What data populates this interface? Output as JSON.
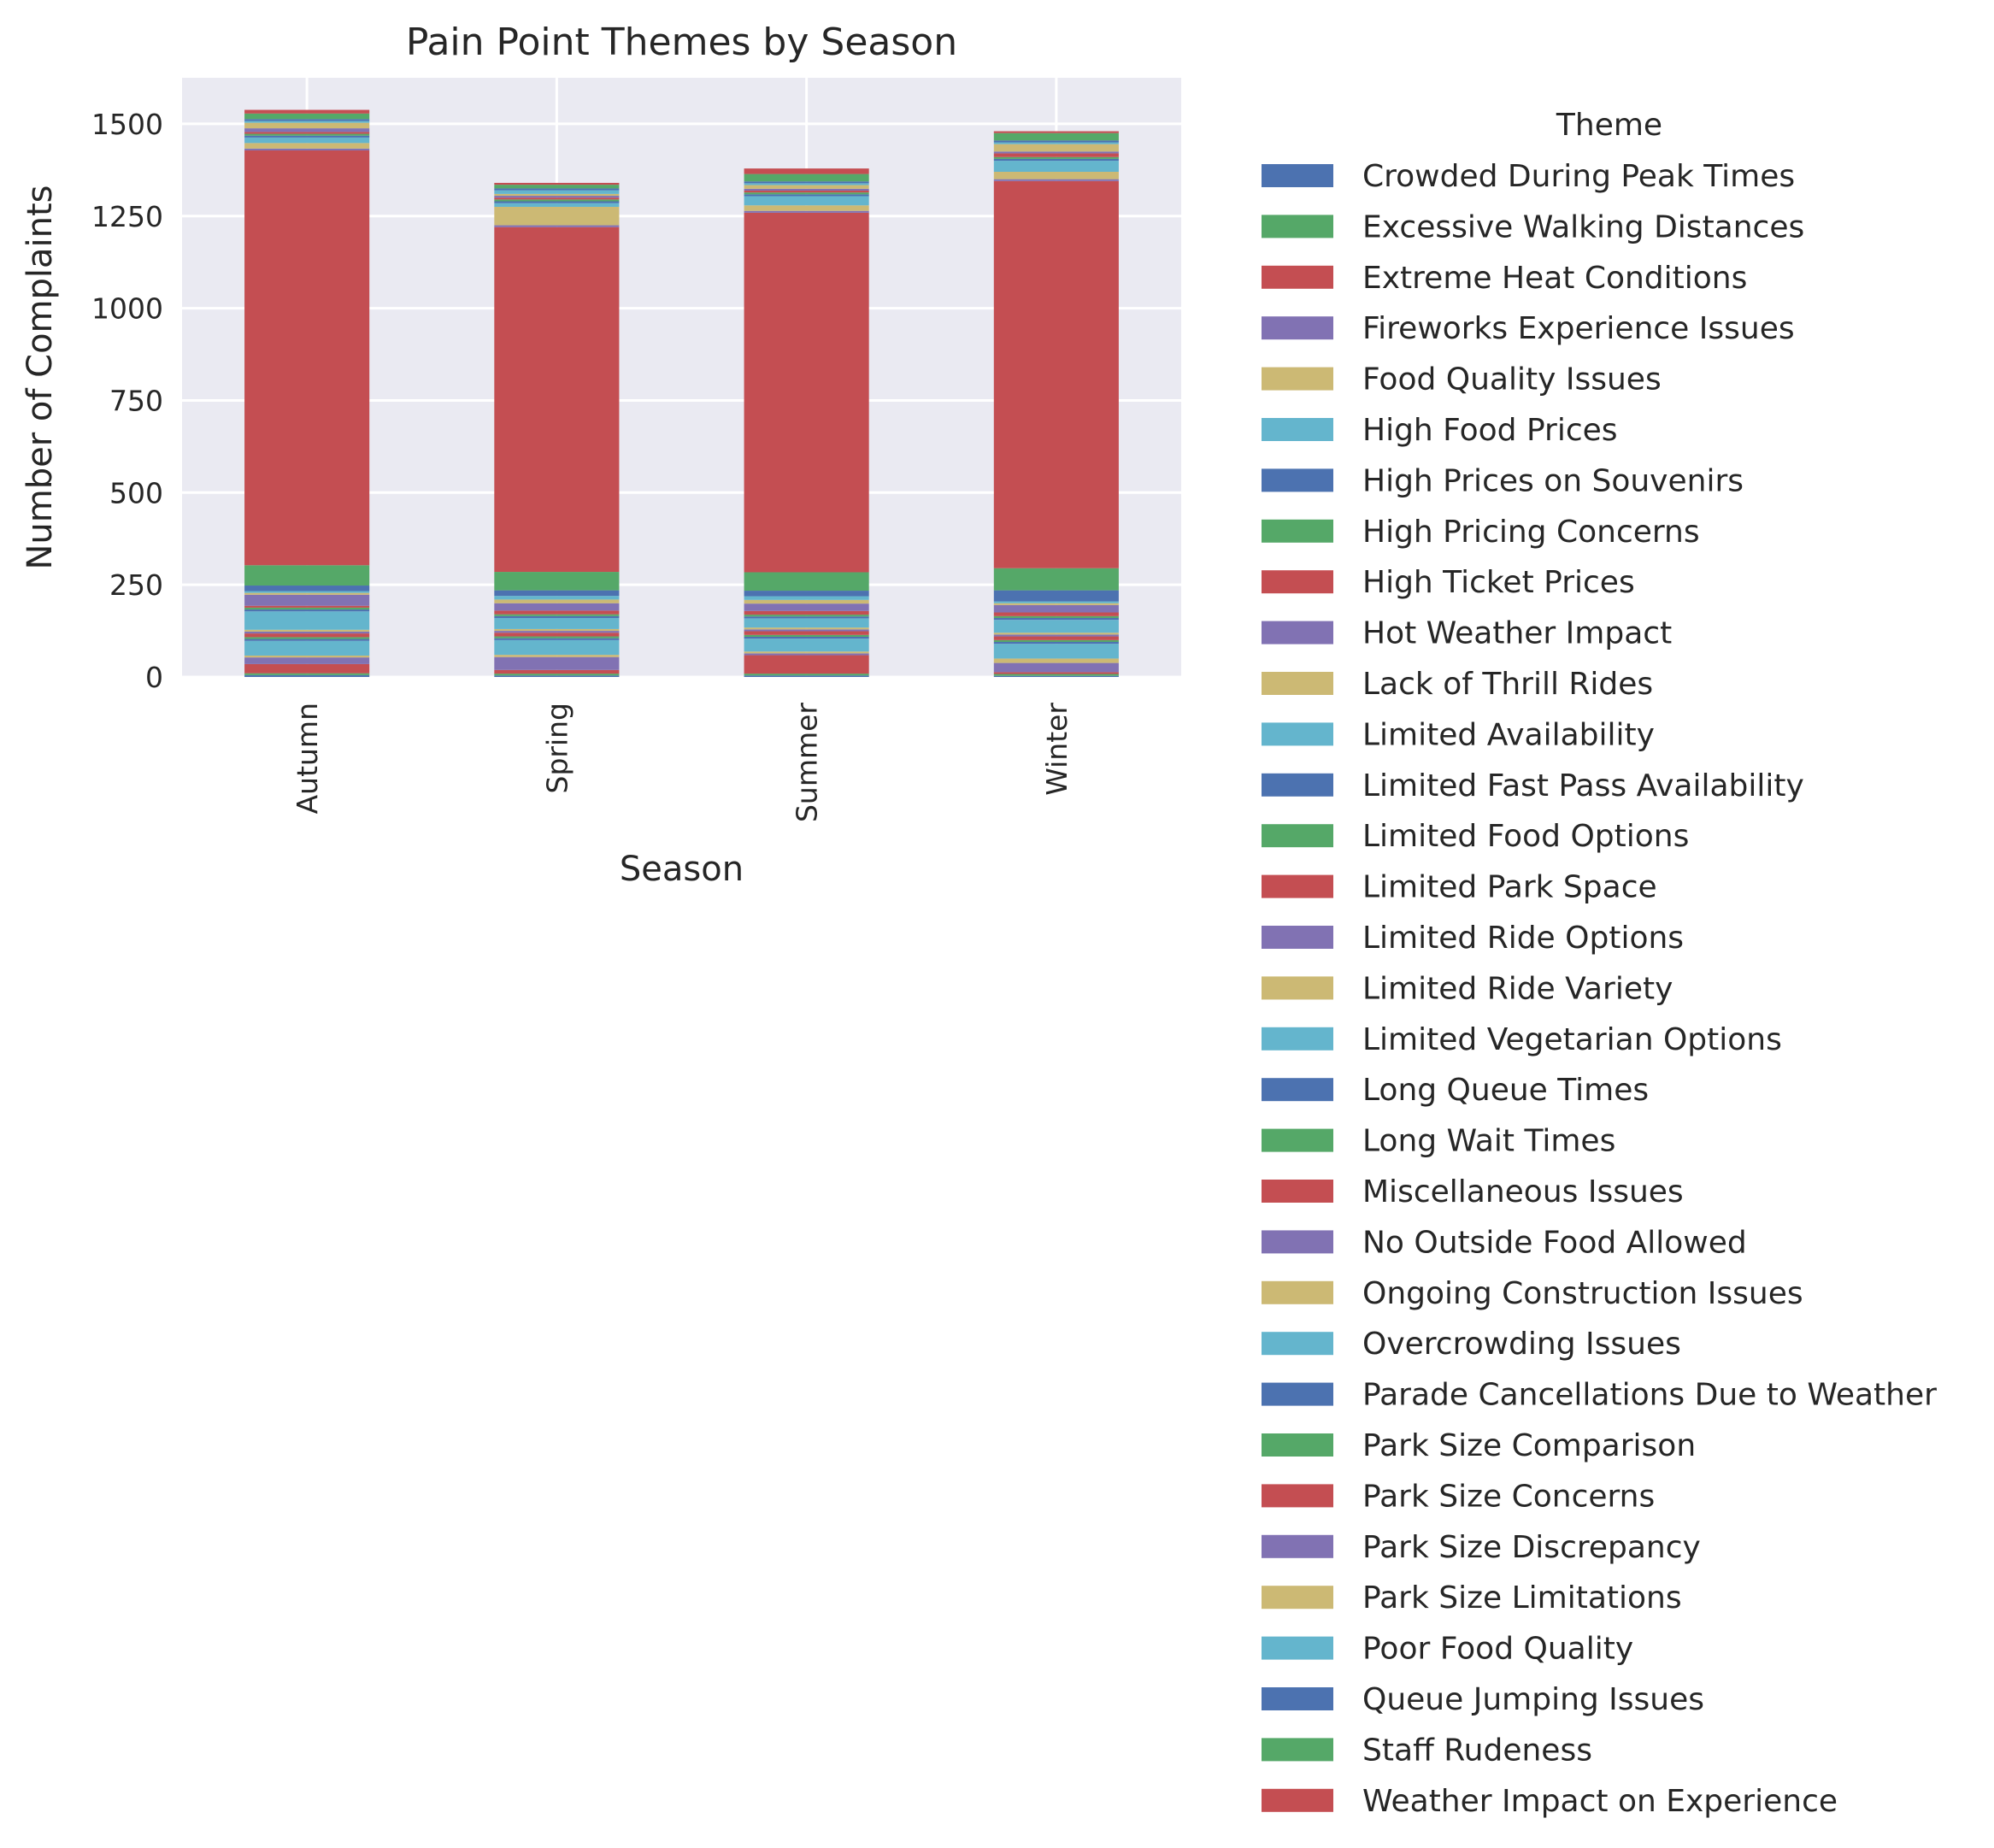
{
  "chart_data": {
    "type": "bar",
    "stacked": true,
    "title": "Pain Point Themes by Season",
    "xlabel": "Season",
    "ylabel": "Number of Complaints",
    "ylim": [
      0,
      1625
    ],
    "yticks": [
      0,
      250,
      500,
      750,
      1000,
      1250,
      1500
    ],
    "grid": true,
    "legend_position": "outside right",
    "legend_title": "Theme",
    "categories": [
      "Autumn",
      "Spring",
      "Summer",
      "Winter"
    ],
    "series": [
      {
        "name": "Crowded During Peak Times",
        "color": "#4c72b0",
        "values": [
          5,
          4,
          4,
          3
        ]
      },
      {
        "name": "Excessive Walking Distances",
        "color": "#55a868",
        "values": [
          5,
          5,
          5,
          5
        ]
      },
      {
        "name": "Extreme Heat Conditions",
        "color": "#c44e52",
        "values": [
          25,
          10,
          50,
          5
        ]
      },
      {
        "name": "Fireworks Experience Issues",
        "color": "#8172b3",
        "values": [
          18,
          35,
          5,
          25
        ]
      },
      {
        "name": "Food Quality Issues",
        "color": "#ccb974",
        "values": [
          5,
          6,
          5,
          12
        ]
      },
      {
        "name": "High Food Prices",
        "color": "#64b5cd",
        "values": [
          40,
          40,
          35,
          40
        ]
      },
      {
        "name": "High Prices on Souvenirs",
        "color": "#4c72b0",
        "values": [
          5,
          5,
          5,
          5
        ]
      },
      {
        "name": "High Pricing Concerns",
        "color": "#55a868",
        "values": [
          5,
          5,
          5,
          5
        ]
      },
      {
        "name": "High Ticket Prices",
        "color": "#c44e52",
        "values": [
          10,
          10,
          10,
          10
        ]
      },
      {
        "name": "Hot Weather Impact",
        "color": "#8172b3",
        "values": [
          5,
          5,
          5,
          5
        ]
      },
      {
        "name": "Lack of Thrill Rides",
        "color": "#ccb974",
        "values": [
          5,
          5,
          5,
          5
        ]
      },
      {
        "name": "Limited Availability",
        "color": "#64b5cd",
        "values": [
          50,
          30,
          25,
          35
        ]
      },
      {
        "name": "Limited Fast Pass Availability",
        "color": "#4c72b0",
        "values": [
          5,
          5,
          5,
          5
        ]
      },
      {
        "name": "Limited Food Options",
        "color": "#55a868",
        "values": [
          5,
          5,
          5,
          5
        ]
      },
      {
        "name": "Limited Park Space",
        "color": "#c44e52",
        "values": [
          5,
          10,
          10,
          10
        ]
      },
      {
        "name": "Limited Ride Options",
        "color": "#8172b3",
        "values": [
          30,
          20,
          20,
          20
        ]
      },
      {
        "name": "Limited Ride Variety",
        "color": "#ccb974",
        "values": [
          5,
          10,
          10,
          5
        ]
      },
      {
        "name": "Limited Vegetarian Options",
        "color": "#64b5cd",
        "values": [
          5,
          10,
          10,
          5
        ]
      },
      {
        "name": "Long Queue Times",
        "color": "#4c72b0",
        "values": [
          15,
          15,
          15,
          30
        ]
      },
      {
        "name": "Long Wait Times",
        "color": "#55a868",
        "values": [
          55,
          50,
          50,
          60
        ]
      },
      {
        "name": "Miscellaneous Issues",
        "color": "#c44e52",
        "values": [
          1125,
          935,
          975,
          1050
        ]
      },
      {
        "name": "No Outside Food Allowed",
        "color": "#8172b3",
        "values": [
          5,
          5,
          5,
          5
        ]
      },
      {
        "name": "Ongoing Construction Issues",
        "color": "#ccb974",
        "values": [
          15,
          50,
          15,
          20
        ]
      },
      {
        "name": "Overcrowding Issues",
        "color": "#64b5cd",
        "values": [
          15,
          10,
          25,
          30
        ]
      },
      {
        "name": "Parade Cancellations Due to Weather",
        "color": "#4c72b0",
        "values": [
          5,
          5,
          5,
          5
        ]
      },
      {
        "name": "Park Size Comparison",
        "color": "#55a868",
        "values": [
          5,
          5,
          5,
          5
        ]
      },
      {
        "name": "Park Size Concerns",
        "color": "#c44e52",
        "values": [
          5,
          5,
          5,
          10
        ]
      },
      {
        "name": "Park Size Discrepancy",
        "color": "#8172b3",
        "values": [
          10,
          5,
          5,
          5
        ]
      },
      {
        "name": "Park Size Limitations",
        "color": "#ccb974",
        "values": [
          15,
          5,
          10,
          20
        ]
      },
      {
        "name": "Poor Food Quality",
        "color": "#64b5cd",
        "values": [
          5,
          10,
          5,
          5
        ]
      },
      {
        "name": "Queue Jumping Issues",
        "color": "#4c72b0",
        "values": [
          5,
          5,
          5,
          5
        ]
      },
      {
        "name": "Staff Rudeness",
        "color": "#55a868",
        "values": [
          15,
          10,
          20,
          20
        ]
      },
      {
        "name": "Weather Impact on Experience",
        "color": "#c44e52",
        "values": [
          10,
          5,
          15,
          5
        ]
      }
    ]
  },
  "colors": {
    "plot_background": "#eaeaf2",
    "grid": "#ffffff",
    "text": "#262626"
  }
}
